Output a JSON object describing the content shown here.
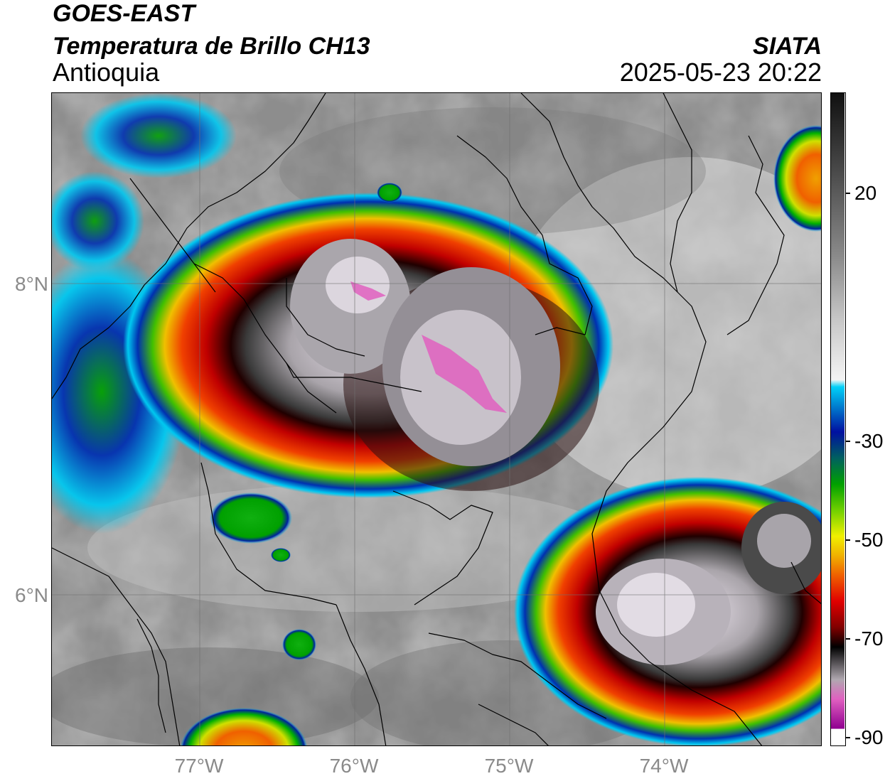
{
  "header": {
    "satellite": "GOES-EAST",
    "product": "Temperatura de Brillo CH13",
    "region": "Antioquia",
    "organization": "SIATA",
    "datetime": "2025-05-23 20:22"
  },
  "axes": {
    "longitude_ticks": [
      "77°W",
      "76°W",
      "75°W",
      "74°W"
    ],
    "latitude_ticks": [
      "8°N",
      "6°N"
    ]
  },
  "colorbar": {
    "labels": [
      "20",
      "-30",
      "-50",
      "-70",
      "-90"
    ],
    "colors": {
      "warm_top": "#101010",
      "grey_mid": "#9a9a9a",
      "white": "#f4f4f4",
      "cyan": "#00c8f0",
      "blue": "#0010a0",
      "green": "#00b000",
      "yellow": "#f0f000",
      "orange": "#f08000",
      "red": "#e00000",
      "dark_red": "#500000",
      "black": "#000000",
      "pink": "#e060c0",
      "purple": "#900090"
    }
  }
}
